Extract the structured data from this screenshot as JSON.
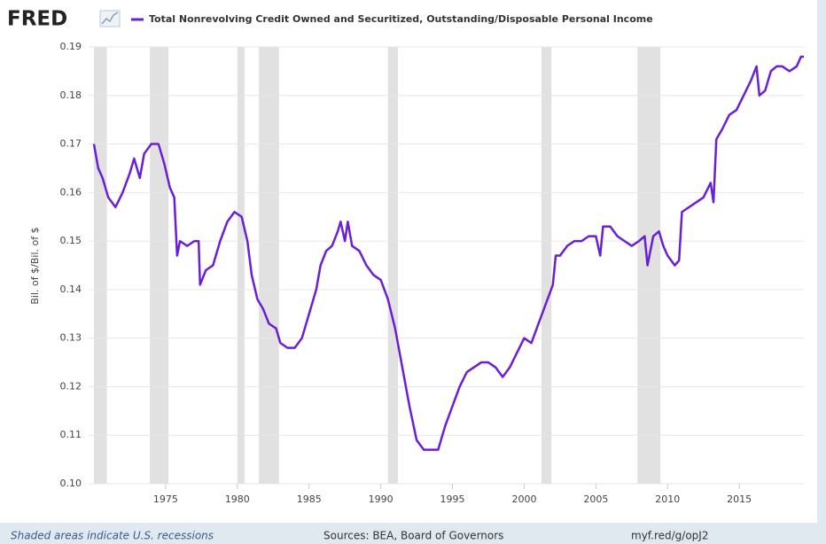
{
  "chart_data": {
    "type": "line",
    "logo": "FRED",
    "ylabel": "Bil. of $/Bil. of $",
    "footer_left": "Shaded areas indicate U.S. recessions",
    "footer_center": "Sources: BEA, Board of Governors",
    "footer_right": "myf.red/g/opJ2",
    "xlim": [
      1970,
      2019.5
    ],
    "xticks": [
      1975,
      1980,
      1985,
      1990,
      1995,
      2000,
      2005,
      2010,
      2015
    ],
    "ylim": [
      0.1,
      0.19
    ],
    "yticks": [
      {
        "value": 0.1,
        "label": "0.10"
      },
      0.11,
      0.12,
      0.13,
      0.14,
      0.15,
      0.16,
      0.17,
      0.18,
      0.19
    ],
    "grid": true,
    "recession_color": "#e1e1e1",
    "recessions": [
      [
        1970.0,
        1970.9
      ],
      [
        1973.9,
        1975.2
      ],
      [
        1980.0,
        1980.5
      ],
      [
        1981.5,
        1982.9
      ],
      [
        1990.5,
        1991.2
      ],
      [
        2001.2,
        2001.9
      ],
      [
        2007.9,
        2009.5
      ]
    ],
    "series": [
      {
        "name": "Total Nonrevolving Credit Owned and Securitized, Outstanding/Disposable Personal Income",
        "color": "#6a1fd6",
        "x": [
          1970.0,
          1970.3,
          1970.6,
          1971.0,
          1971.5,
          1972.0,
          1972.5,
          1972.8,
          1973.2,
          1973.5,
          1974.0,
          1974.5,
          1974.9,
          1975.3,
          1975.6,
          1975.8,
          1976.0,
          1976.5,
          1977.0,
          1977.3,
          1977.4,
          1977.8,
          1978.3,
          1978.8,
          1979.3,
          1979.8,
          1980.3,
          1980.7,
          1981.0,
          1981.4,
          1981.8,
          1982.2,
          1982.7,
          1983.0,
          1983.5,
          1984.0,
          1984.5,
          1985.0,
          1985.5,
          1985.8,
          1986.2,
          1986.6,
          1987.0,
          1987.2,
          1987.5,
          1987.7,
          1988.0,
          1988.5,
          1989.0,
          1989.5,
          1990.0,
          1990.5,
          1991.0,
          1991.5,
          1992.0,
          1992.5,
          1993.0,
          1993.5,
          1994.0,
          1994.5,
          1995.0,
          1995.5,
          1996.0,
          1996.5,
          1997.0,
          1997.5,
          1998.0,
          1998.5,
          1999.0,
          1999.5,
          2000.0,
          2000.5,
          2001.0,
          2001.5,
          2002.0,
          2002.2,
          2002.5,
          2003.0,
          2003.5,
          2004.0,
          2004.5,
          2005.0,
          2005.3,
          2005.5,
          2006.0,
          2006.5,
          2007.0,
          2007.5,
          2008.0,
          2008.4,
          2008.6,
          2009.0,
          2009.4,
          2009.7,
          2010.0,
          2010.5,
          2010.8,
          2011.0,
          2011.5,
          2012.0,
          2012.5,
          2013.0,
          2013.2,
          2013.4,
          2013.8,
          2014.3,
          2014.8,
          2015.3,
          2015.8,
          2016.2,
          2016.4,
          2016.8,
          2017.2,
          2017.6,
          2018.0,
          2018.5,
          2019.0,
          2019.3,
          2019.5
        ],
        "values": [
          0.17,
          0.165,
          0.163,
          0.159,
          0.157,
          0.16,
          0.164,
          0.167,
          0.163,
          0.168,
          0.17,
          0.17,
          0.166,
          0.161,
          0.159,
          0.147,
          0.15,
          0.149,
          0.15,
          0.15,
          0.141,
          0.144,
          0.145,
          0.15,
          0.154,
          0.156,
          0.155,
          0.15,
          0.143,
          0.138,
          0.136,
          0.133,
          0.132,
          0.129,
          0.128,
          0.128,
          0.13,
          0.135,
          0.14,
          0.145,
          0.148,
          0.149,
          0.152,
          0.154,
          0.15,
          0.154,
          0.149,
          0.148,
          0.145,
          0.143,
          0.142,
          0.138,
          0.132,
          0.124,
          0.116,
          0.109,
          0.107,
          0.107,
          0.107,
          0.112,
          0.116,
          0.12,
          0.123,
          0.124,
          0.125,
          0.125,
          0.124,
          0.122,
          0.124,
          0.127,
          0.13,
          0.129,
          0.133,
          0.137,
          0.141,
          0.147,
          0.147,
          0.149,
          0.15,
          0.15,
          0.151,
          0.151,
          0.147,
          0.153,
          0.153,
          0.151,
          0.15,
          0.149,
          0.15,
          0.151,
          0.145,
          0.151,
          0.152,
          0.149,
          0.147,
          0.145,
          0.146,
          0.156,
          0.157,
          0.158,
          0.159,
          0.162,
          0.158,
          0.171,
          0.173,
          0.176,
          0.177,
          0.18,
          0.183,
          0.186,
          0.18,
          0.181,
          0.185,
          0.186,
          0.186,
          0.185,
          0.186,
          0.188,
          0.188
        ]
      }
    ]
  }
}
